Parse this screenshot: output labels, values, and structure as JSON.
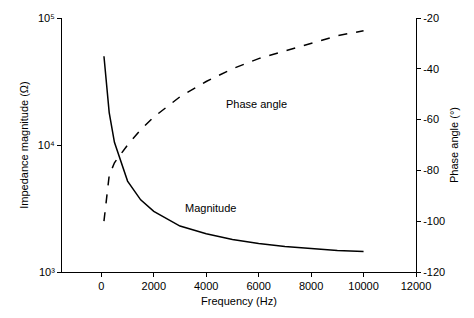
{
  "chart_data": {
    "type": "line",
    "x_label": "Frequency (Hz)",
    "y_label": "Impedance magnitude (Ω)",
    "y2_label": "Phase angle (°)",
    "log": "y",
    "grid": false,
    "xlim": [
      -1500,
      12000
    ],
    "xticks": [
      0,
      2000,
      4000,
      6000,
      8000,
      10000,
      12000
    ],
    "ylim": [
      1000,
      100000
    ],
    "yticks": [
      {
        "value": 1000,
        "label": "10³"
      },
      {
        "value": 10000,
        "label": "10⁴"
      },
      {
        "value": 100000,
        "label": "10⁵"
      }
    ],
    "y2lim": [
      -120,
      -20
    ],
    "y2ticks": [
      -120,
      -100,
      -80,
      -60,
      -40,
      -20
    ],
    "x": [
      100,
      200,
      300,
      500,
      800,
      1000,
      1500,
      2000,
      3000,
      4000,
      5000,
      6000,
      7000,
      8000,
      9000,
      10000
    ],
    "series": [
      {
        "name": "Magnitude",
        "color": "#000000",
        "line_style": "solid",
        "values": [
          50000,
          28000,
          18000,
          10500,
          6800,
          5200,
          3700,
          3000,
          2300,
          2000,
          1800,
          1680,
          1590,
          1530,
          1480,
          1450
        ]
      },
      {
        "name": "Phase angle",
        "color": "#000000",
        "line_style": "dash",
        "axis": "y2",
        "values": [
          -100,
          -90,
          -82,
          -77,
          -73,
          -70,
          -64,
          -59,
          -51,
          -45,
          -40,
          -36,
          -33,
          -30,
          -27,
          -25
        ]
      }
    ],
    "annotations": [
      "Phase angle",
      "Magnitude"
    ]
  }
}
